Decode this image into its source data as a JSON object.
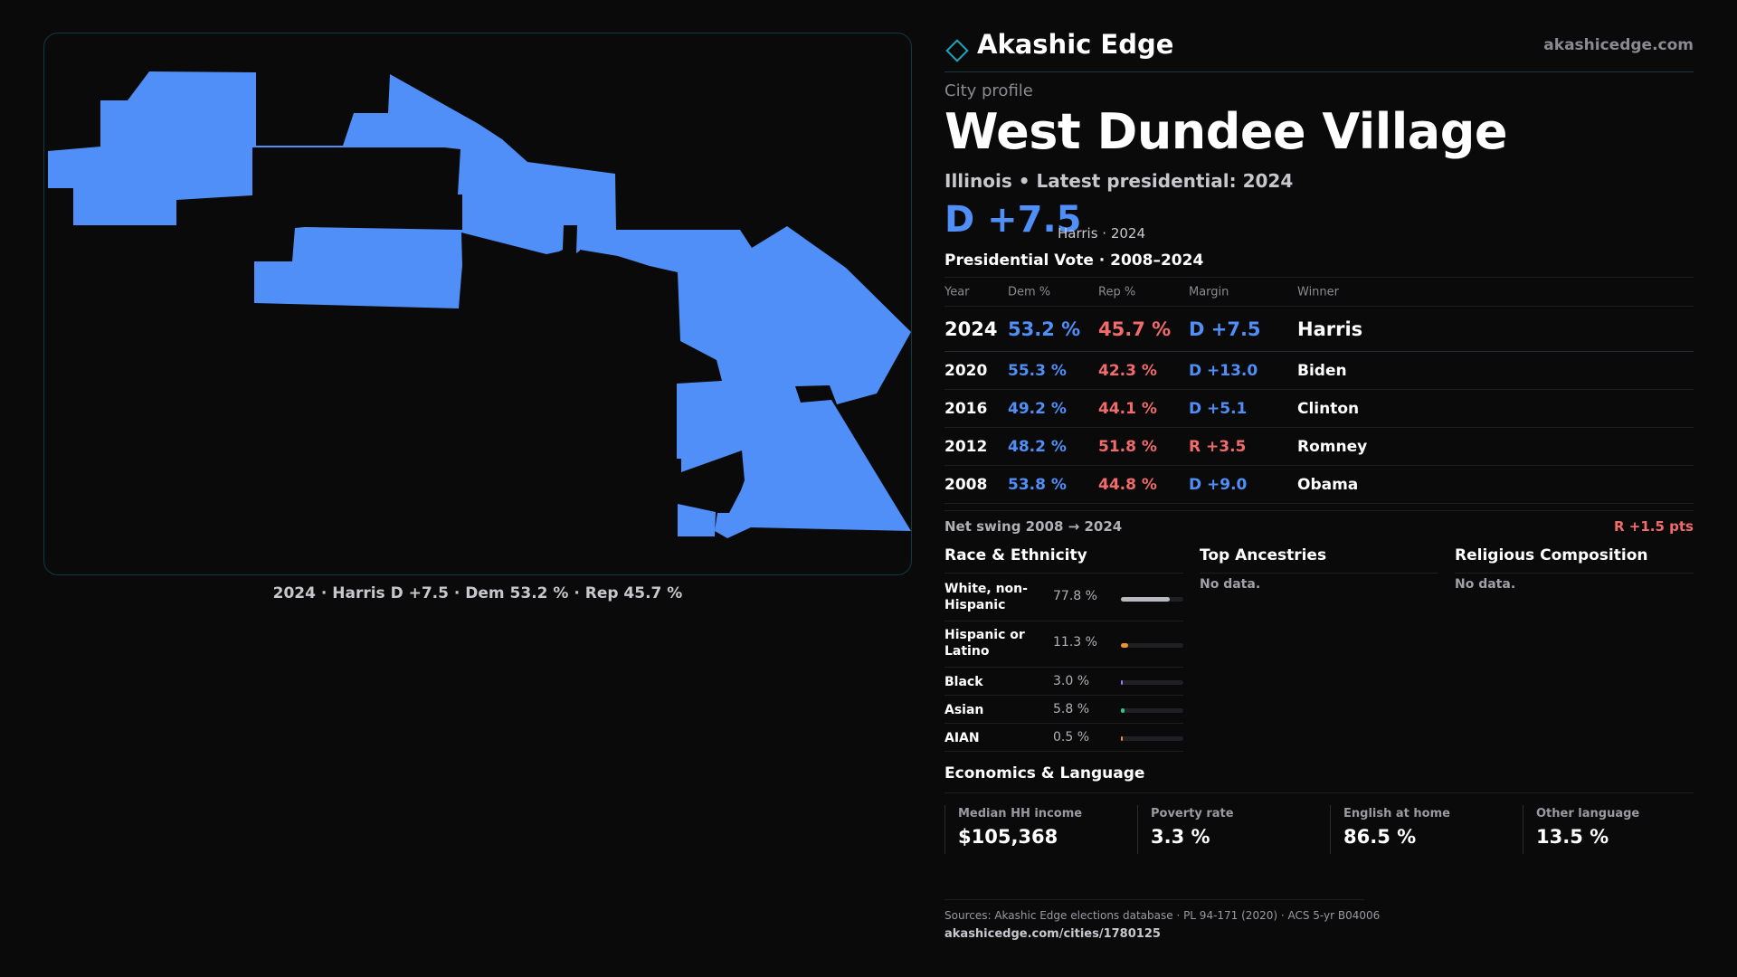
{
  "map": {
    "fill_color": "#4f8ff7",
    "caption": "2024 · Harris D +7.5 · Dem 53.2 % · Rep 45.7 %"
  },
  "brand": {
    "name": "Akashic Edge",
    "url": "akashicedge.com",
    "icon": "diamond-icon"
  },
  "profile": {
    "eyebrow": "City profile",
    "title": "West Dundee Village",
    "subtitle": "Illinois • Latest presidential: 2024",
    "margin": "D +7.5",
    "margin_note": "Harris · 2024"
  },
  "vote": {
    "section_title": "Presidential Vote · 2008–2024",
    "headers": {
      "year": "Year",
      "dem": "Dem %",
      "rep": "Rep %",
      "margin": "Margin",
      "winner": "Winner"
    },
    "rows": [
      {
        "year": "2024",
        "dem": "53.2 %",
        "rep": "45.7 %",
        "margin": "D +7.5",
        "winner": "Harris",
        "party": "D"
      },
      {
        "year": "2020",
        "dem": "55.3 %",
        "rep": "42.3 %",
        "margin": "D +13.0",
        "winner": "Biden",
        "party": "D"
      },
      {
        "year": "2016",
        "dem": "49.2 %",
        "rep": "44.1 %",
        "margin": "D +5.1",
        "winner": "Clinton",
        "party": "D"
      },
      {
        "year": "2012",
        "dem": "48.2 %",
        "rep": "51.8 %",
        "margin": "R +3.5",
        "winner": "Romney",
        "party": "R"
      },
      {
        "year": "2008",
        "dem": "53.8 %",
        "rep": "44.8 %",
        "margin": "D +9.0",
        "winner": "Obama",
        "party": "D"
      }
    ],
    "swing_label": "Net swing 2008 → 2024",
    "swing_value": "R +1.5 pts"
  },
  "colors": {
    "dem": "#4f8ff7",
    "rep": "#f26b6b",
    "accent": "#1fa3b5"
  },
  "race": {
    "title": "Race & Ethnicity",
    "rows": [
      {
        "name": "White, non-Hispanic",
        "value": "77.8 %",
        "pct": 77.8,
        "color": "#b8b8c0"
      },
      {
        "name": "Hispanic or Latino",
        "value": "11.3 %",
        "pct": 11.3,
        "color": "#e8952e"
      },
      {
        "name": "Black",
        "value": "3.0 %",
        "pct": 3.0,
        "color": "#9b7cf2"
      },
      {
        "name": "Asian",
        "value": "5.8 %",
        "pct": 5.8,
        "color": "#2ec48a"
      },
      {
        "name": "AIAN",
        "value": "0.5 %",
        "pct": 0.5,
        "color": "#e8952e"
      }
    ]
  },
  "ancestries": {
    "title": "Top Ancestries",
    "empty": "No data."
  },
  "religion": {
    "title": "Religious Composition",
    "empty": "No data."
  },
  "economics": {
    "title": "Economics & Language",
    "cells": [
      {
        "label": "Median HH income",
        "value": "$105,368"
      },
      {
        "label": "Poverty rate",
        "value": "3.3 %"
      },
      {
        "label": "English at home",
        "value": "86.5 %"
      },
      {
        "label": "Other language",
        "value": "13.5 %"
      }
    ]
  },
  "footer": {
    "sources": "Sources: Akashic Edge elections database · PL 94-171 (2020) · ACS 5-yr B04006",
    "url": "akashicedge.com/cities/1780125"
  }
}
